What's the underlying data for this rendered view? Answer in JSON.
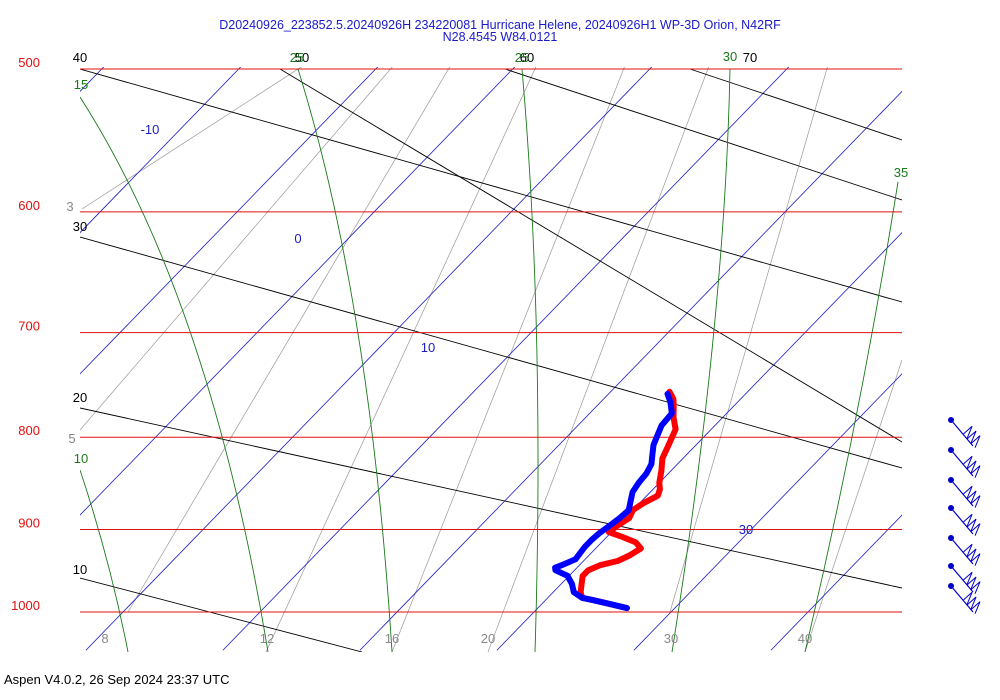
{
  "title": {
    "line1": "D20240926_223852.5.20240926H 234220081 Hurricane Helene, 20240926H1 WP-3D Orion, N42RF",
    "line2": "N28.4545 W84.0121"
  },
  "footer": "Aspen V4.0.2, 26 Sep 2024  23:37 UTC",
  "colors": {
    "isobar": "#e01010",
    "isotherm": "#1a1acc",
    "dry_adiabat": "#000000",
    "moist_adiabat": "#1a7a1a",
    "mixing_ratio": "#999999",
    "temperature": "#ff0000",
    "dewpoint": "#0000ff",
    "wind": "#0000cc"
  },
  "chart_data": {
    "type": "skew-t",
    "pressure_range_hpa": [
      1000,
      500
    ],
    "isobars": {
      "labels": [
        "500",
        "600",
        "700",
        "800",
        "900",
        "1000"
      ]
    },
    "isotherms": {
      "labels": [
        "-10",
        "0",
        "10",
        "30"
      ]
    },
    "dry_adiabats": {
      "labels": [
        "40",
        "30",
        "20",
        "10",
        "50",
        "60",
        "70"
      ]
    },
    "moist_adiabats": {
      "labels": [
        "15",
        "10",
        "25",
        "25",
        "30",
        "35"
      ]
    },
    "mixing_ratio_labels": {
      "labels": [
        "3",
        "5",
        "8",
        "12",
        "16",
        "20",
        "30",
        "40"
      ]
    },
    "series": [
      {
        "values": [
          [
            995,
            26.5
          ],
          [
            990,
            25
          ],
          [
            985,
            23.5
          ],
          [
            982,
            22.5
          ],
          [
            975,
            22
          ],
          [
            965,
            21.5
          ],
          [
            955,
            21
          ],
          [
            948,
            21
          ],
          [
            942,
            21.5
          ],
          [
            937,
            22.5
          ],
          [
            930,
            23
          ],
          [
            922,
            23.3
          ],
          [
            915,
            22.5
          ],
          [
            908,
            21
          ],
          [
            903,
            19.8
          ],
          [
            895,
            20
          ],
          [
            887,
            20.3
          ],
          [
            878,
            20
          ],
          [
            870,
            20.3
          ],
          [
            862,
            20.8
          ],
          [
            855,
            20.5
          ],
          [
            848,
            20
          ],
          [
            835,
            19.3
          ],
          [
            822,
            18.5
          ],
          [
            808,
            18
          ],
          [
            792,
            17.4
          ],
          [
            780,
            16.4
          ],
          [
            770,
            15.7
          ],
          [
            762,
            15.1
          ],
          [
            755,
            14.3
          ]
        ]
      },
      {
        "values": [
          [
            995,
            26.5
          ],
          [
            990,
            25
          ],
          [
            985,
            23.5
          ],
          [
            982,
            22.5
          ],
          [
            975,
            21.5
          ],
          [
            965,
            20.8
          ],
          [
            955,
            19.9
          ],
          [
            948,
            18.6
          ],
          [
            945,
            18.4
          ],
          [
            942,
            18.7
          ],
          [
            935,
            19.3
          ],
          [
            928,
            19.2
          ],
          [
            920,
            19.1
          ],
          [
            912,
            19.1
          ],
          [
            904,
            19.2
          ],
          [
            896,
            19.4
          ],
          [
            887,
            19.6
          ],
          [
            878,
            19.7
          ],
          [
            868,
            19.2
          ],
          [
            858,
            18.7
          ],
          [
            848,
            18.5
          ],
          [
            838,
            18.4
          ],
          [
            828,
            18.1
          ],
          [
            818,
            17.5
          ],
          [
            808,
            16.9
          ],
          [
            798,
            16.5
          ],
          [
            788,
            16.1
          ],
          [
            776,
            16
          ],
          [
            765,
            15.1
          ],
          [
            757,
            14.3
          ]
        ]
      }
    ],
    "wind_barbs": {
      "levels_hpa": [
        770,
        820,
        860,
        890,
        930,
        965,
        990
      ]
    }
  }
}
